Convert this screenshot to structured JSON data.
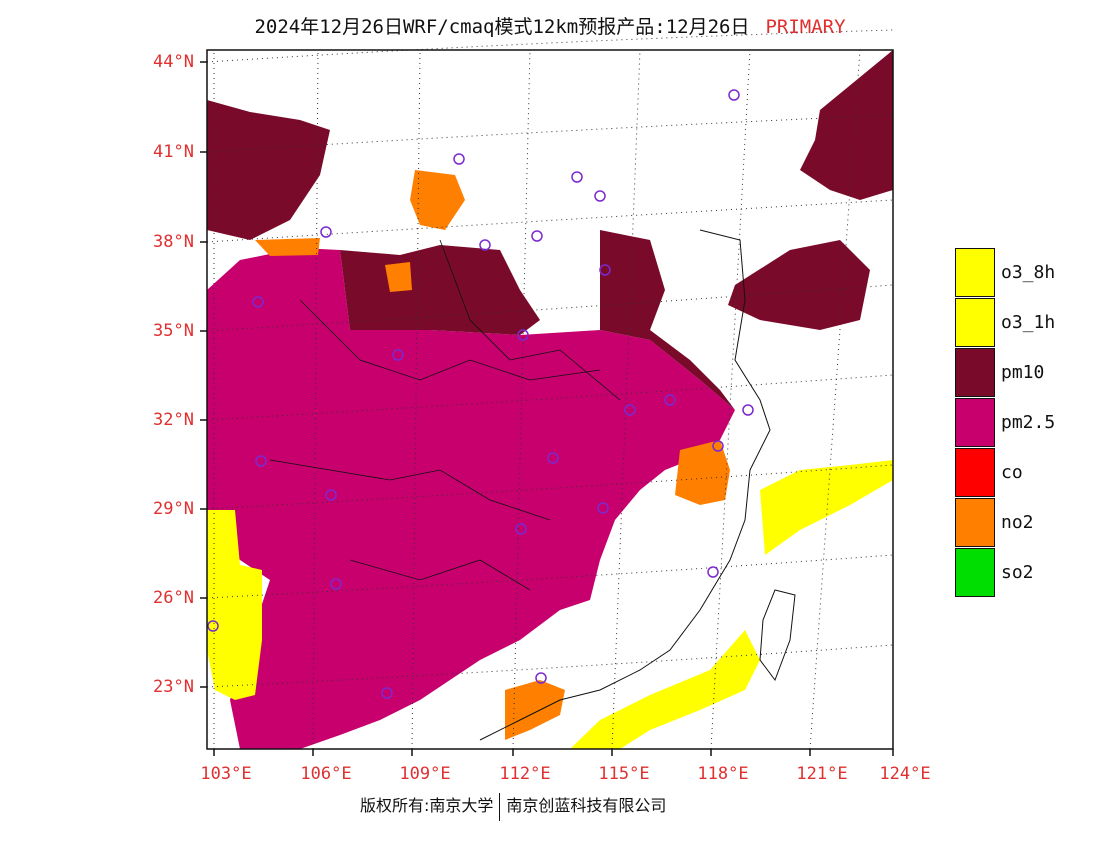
{
  "title": {
    "text": "2024年12月26日WRF/cmaq模式12km预报产品:12月26日",
    "tag": "PRIMARY"
  },
  "axes": {
    "lat_labels": [
      "44°N",
      "41°N",
      "38°N",
      "35°N",
      "32°N",
      "29°N",
      "26°N",
      "23°N"
    ],
    "lon_labels": [
      "103°E",
      "106°E",
      "109°E",
      "112°E",
      "115°E",
      "118°E",
      "121°E",
      "124°E"
    ]
  },
  "legend": {
    "items": [
      {
        "label": "o3_8h",
        "color": "#ffff00"
      },
      {
        "label": "o3_1h",
        "color": "#ffff00"
      },
      {
        "label": "pm10",
        "color": "#7a0a2a"
      },
      {
        "label": "pm2.5",
        "color": "#c8006e"
      },
      {
        "label": "co",
        "color": "#ff0000"
      },
      {
        "label": "no2",
        "color": "#ff7f00"
      },
      {
        "label": "so2",
        "color": "#00dd00"
      }
    ]
  },
  "copyright": {
    "left": "版权所有:南京大学",
    "right": "南京创蓝科技有限公司"
  },
  "colors": {
    "pm10": "#7a0a2a",
    "pm25": "#c8006e",
    "no2": "#ff7f00",
    "o3": "#ffff00",
    "label_red": "#e03030",
    "station_ring": "#7a2ad0"
  }
}
